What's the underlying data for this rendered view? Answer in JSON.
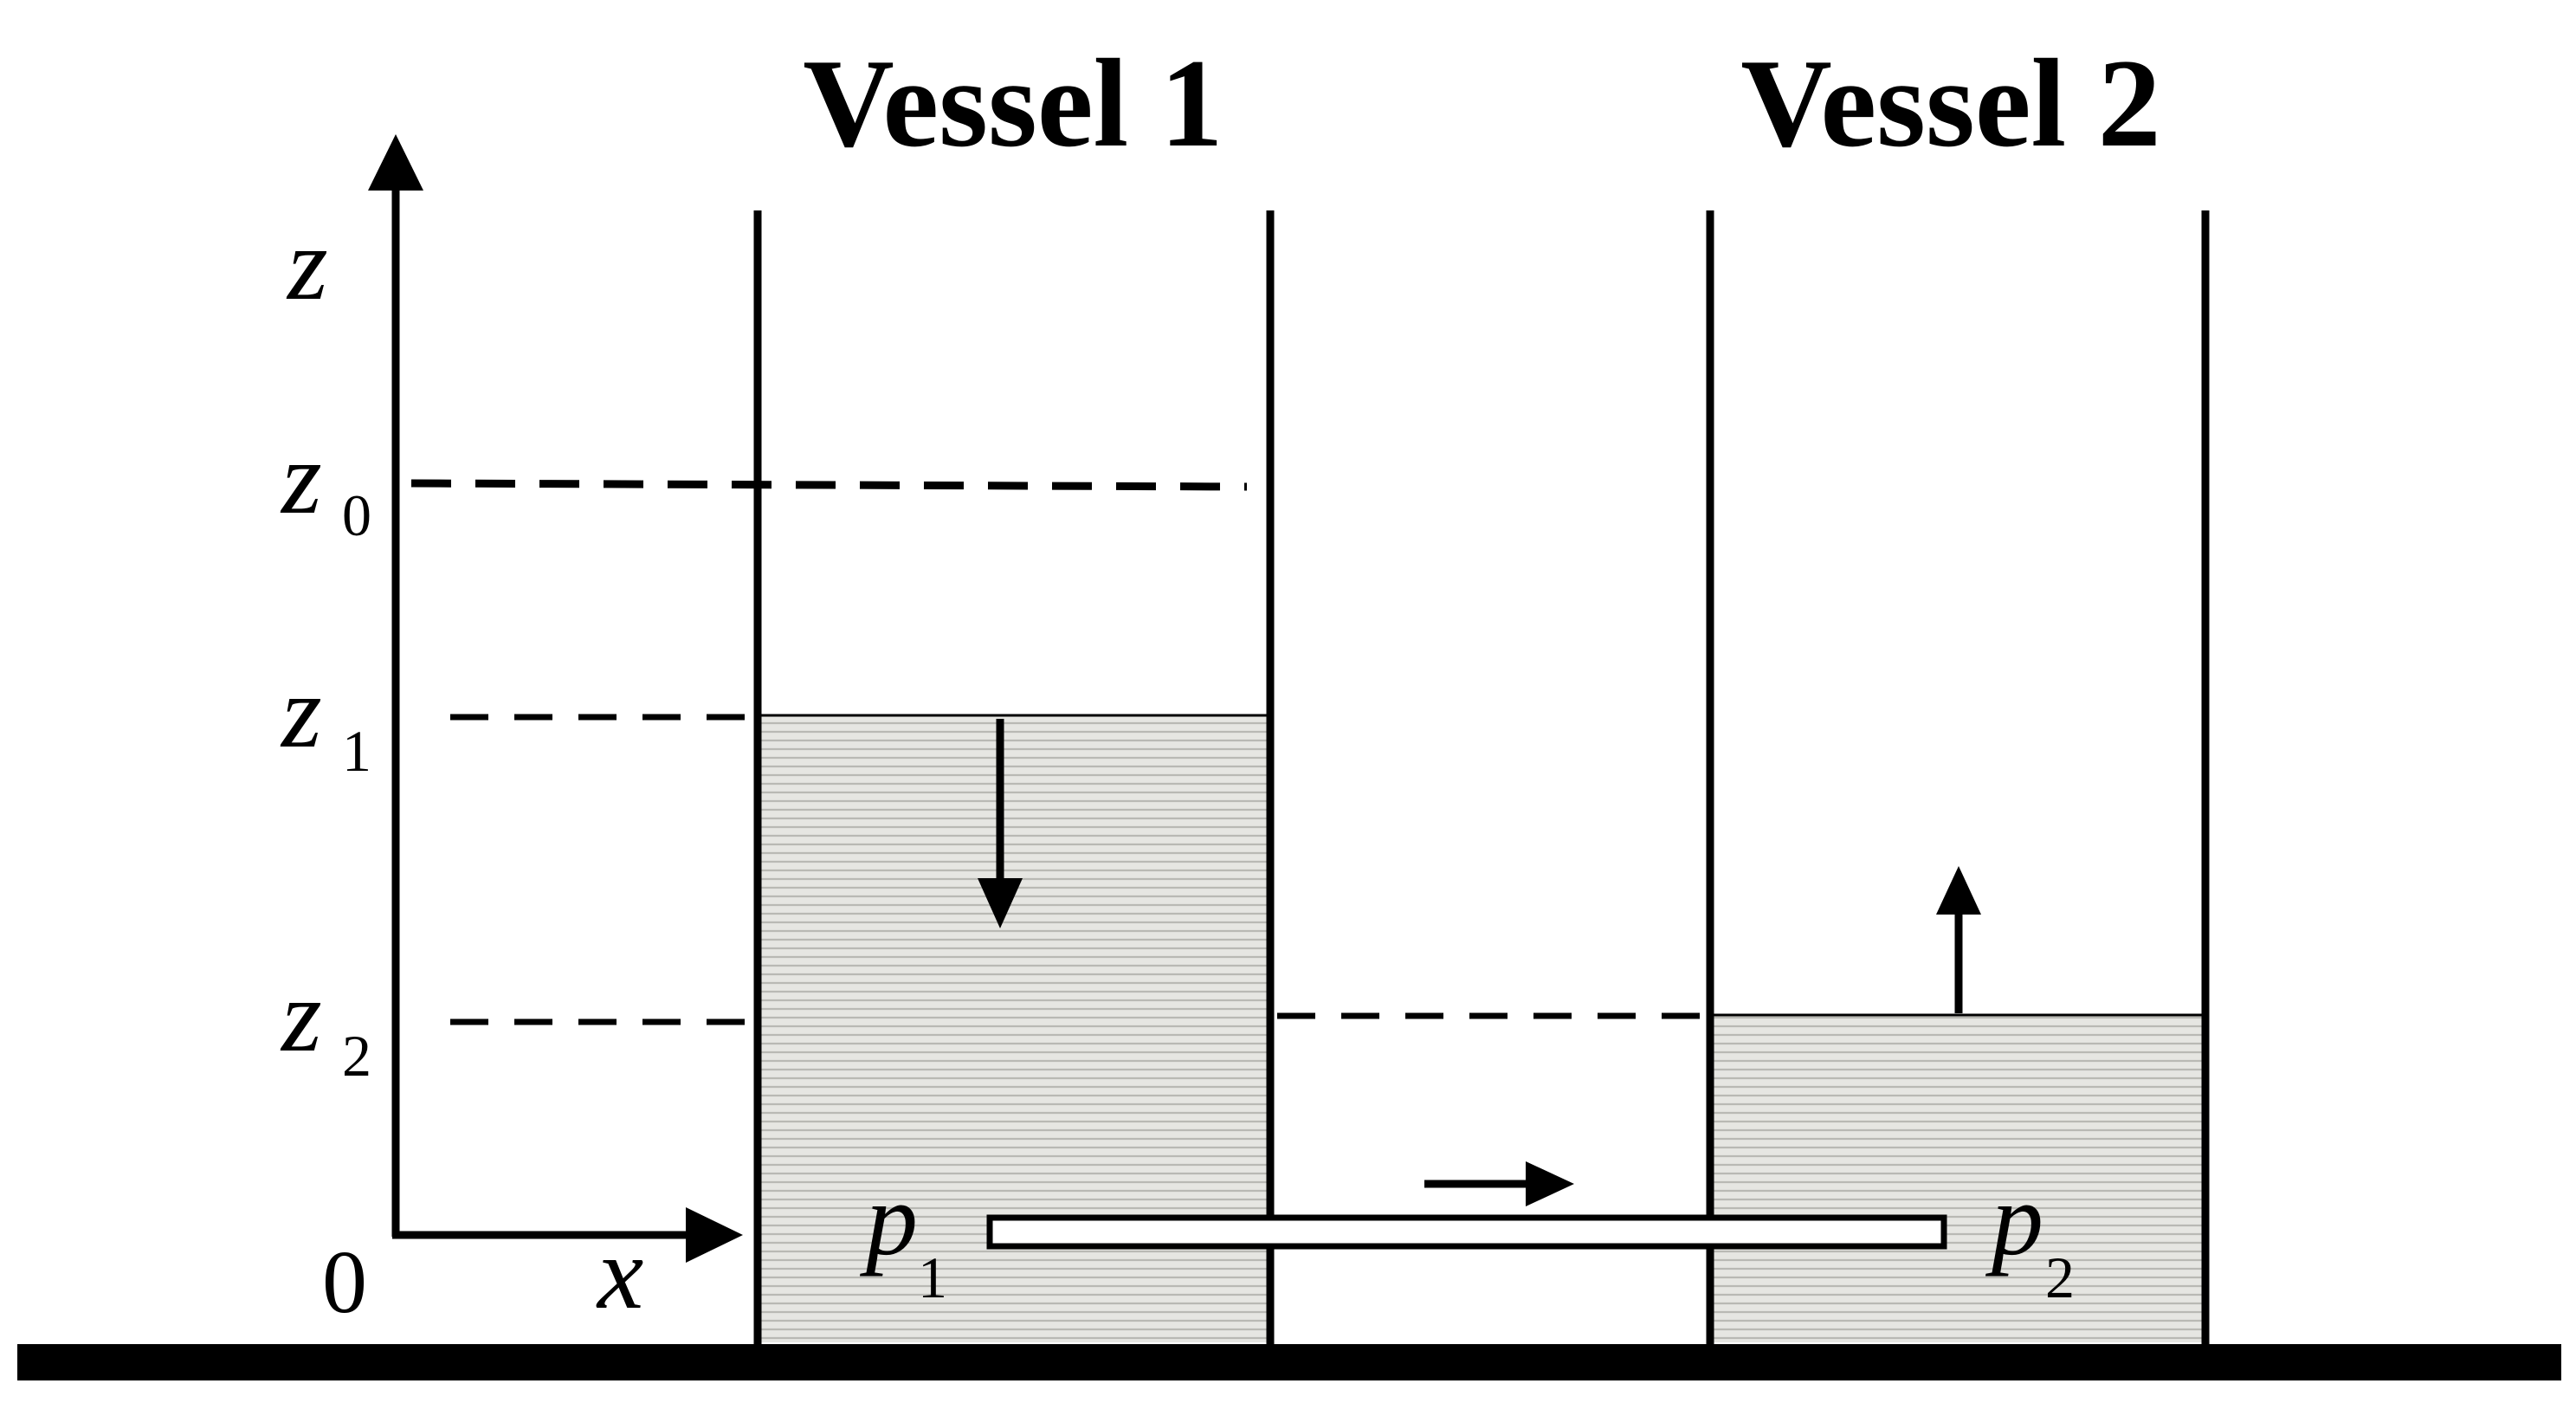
{
  "vessels": {
    "vessel1_label": "Vessel 1",
    "vessel2_label": "Vessel 2"
  },
  "axes": {
    "z_label": "z",
    "x_label": "x",
    "origin_label": "0"
  },
  "levels": [
    {
      "var": "z",
      "sub": "0"
    },
    {
      "var": "z",
      "sub": "1"
    },
    {
      "var": "z",
      "sub": "2"
    }
  ],
  "pressures": [
    {
      "var": "p",
      "sub": "1"
    },
    {
      "var": "p",
      "sub": "2"
    }
  ],
  "colors": {
    "liquid_fill": "#e6e6e2",
    "liquid_line": "#b9b9b4",
    "ink": "#000000"
  }
}
